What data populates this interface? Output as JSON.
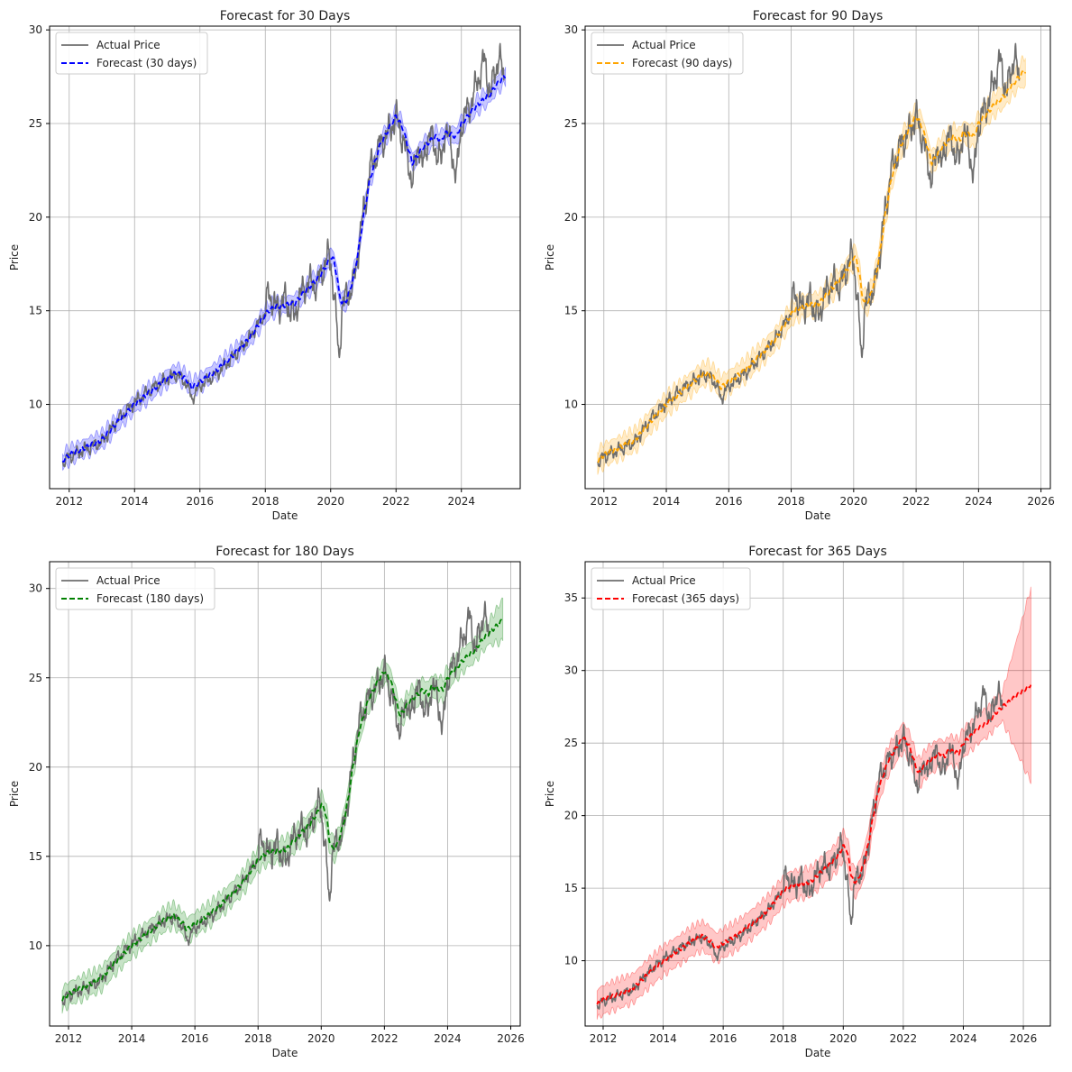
{
  "chart_data": [
    {
      "type": "line",
      "title": "Forecast for 30 Days",
      "xlabel": "Date",
      "ylabel": "Price",
      "xlim": [
        2011.4,
        2025.8
      ],
      "ylim": [
        5.5,
        30.2
      ],
      "xticks": [
        2012,
        2014,
        2016,
        2018,
        2020,
        2022,
        2024
      ],
      "yticks": [
        10,
        15,
        20,
        25,
        30
      ],
      "grid": true,
      "legend_position": "top-left",
      "forecast_color": "#0000ff",
      "forecast_end": 2025.35,
      "series": [
        {
          "name": "Actual Price",
          "color": "#808080",
          "style": "solid"
        },
        {
          "name": "Forecast (30 days)",
          "color": "#0000ff",
          "style": "dashed"
        }
      ]
    },
    {
      "type": "line",
      "title": "Forecast for 90 Days",
      "xlabel": "Date",
      "ylabel": "Price",
      "xlim": [
        2011.4,
        2026.3
      ],
      "ylim": [
        5.5,
        30.2
      ],
      "xticks": [
        2012,
        2014,
        2016,
        2018,
        2020,
        2022,
        2024,
        2026
      ],
      "yticks": [
        10,
        15,
        20,
        25,
        30
      ],
      "grid": true,
      "legend_position": "top-left",
      "forecast_color": "#ffa500",
      "forecast_end": 2025.5,
      "series": [
        {
          "name": "Actual Price",
          "color": "#808080",
          "style": "solid"
        },
        {
          "name": "Forecast (90 days)",
          "color": "#ffa500",
          "style": "dashed"
        }
      ]
    },
    {
      "type": "line",
      "title": "Forecast for 180 Days",
      "xlabel": "Date",
      "ylabel": "Price",
      "xlim": [
        2011.4,
        2026.3
      ],
      "ylim": [
        5.5,
        31.5
      ],
      "xticks": [
        2012,
        2014,
        2016,
        2018,
        2020,
        2022,
        2024,
        2026
      ],
      "yticks": [
        10,
        15,
        20,
        25,
        30
      ],
      "grid": true,
      "legend_position": "top-left",
      "forecast_color": "#008000",
      "forecast_end": 2025.75,
      "series": [
        {
          "name": "Actual Price",
          "color": "#808080",
          "style": "solid"
        },
        {
          "name": "Forecast (180 days)",
          "color": "#008000",
          "style": "dashed"
        }
      ]
    },
    {
      "type": "line",
      "title": "Forecast for 365 Days",
      "xlabel": "Date",
      "ylabel": "Price",
      "xlim": [
        2011.4,
        2026.9
      ],
      "ylim": [
        5.5,
        37.5
      ],
      "xticks": [
        2012,
        2014,
        2016,
        2018,
        2020,
        2022,
        2024,
        2026
      ],
      "yticks": [
        10,
        15,
        20,
        25,
        30,
        35
      ],
      "grid": true,
      "legend_position": "top-left",
      "forecast_color": "#ff0000",
      "forecast_end": 2026.25,
      "series": [
        {
          "name": "Actual Price",
          "color": "#808080",
          "style": "solid"
        },
        {
          "name": "Forecast (365 days)",
          "color": "#ff0000",
          "style": "dashed"
        }
      ]
    }
  ],
  "actual_series": {
    "x": [
      2011.8,
      2012.0,
      2012.5,
      2013.0,
      2013.5,
      2014.0,
      2014.5,
      2015.0,
      2015.3,
      2015.6,
      2015.75,
      2016.0,
      2016.5,
      2017.0,
      2017.5,
      2018.0,
      2018.1,
      2018.3,
      2018.6,
      2018.9,
      2019.0,
      2019.3,
      2019.6,
      2019.9,
      2020.0,
      2020.1,
      2020.2,
      2020.25,
      2020.35,
      2020.5,
      2020.7,
      2020.85,
      2021.0,
      2021.2,
      2021.5,
      2021.8,
      2022.0,
      2022.2,
      2022.4,
      2022.5,
      2022.7,
      2022.8,
      2023.0,
      2023.2,
      2023.4,
      2023.5,
      2023.7,
      2023.85,
      2024.0,
      2024.3,
      2024.5,
      2024.7,
      2024.9,
      2025.0,
      2025.15,
      2025.3
    ],
    "y": [
      6.9,
      7.2,
      7.6,
      8.0,
      9.2,
      10.1,
      10.8,
      11.4,
      11.6,
      11.1,
      10.3,
      11.0,
      11.6,
      12.5,
      13.5,
      14.9,
      16.1,
      15.1,
      15.6,
      14.6,
      15.6,
      16.5,
      16.4,
      17.9,
      17.7,
      16.0,
      13.8,
      12.3,
      15.2,
      15.8,
      16.4,
      18.3,
      20.2,
      22.5,
      23.8,
      24.6,
      25.4,
      24.2,
      22.8,
      21.8,
      24.1,
      22.5,
      24.5,
      23.7,
      22.9,
      24.9,
      23.6,
      22.1,
      25.0,
      26.1,
      27.3,
      28.4,
      26.5,
      27.6,
      28.6,
      27.4
    ]
  },
  "forecast_series": {
    "x": [
      2011.8,
      2012.0,
      2012.5,
      2013.0,
      2013.5,
      2014.0,
      2014.5,
      2015.0,
      2015.3,
      2015.6,
      2015.75,
      2016.0,
      2016.5,
      2017.0,
      2017.5,
      2018.0,
      2018.1,
      2018.3,
      2018.6,
      2018.9,
      2019.0,
      2019.3,
      2019.6,
      2019.9,
      2020.0,
      2020.1,
      2020.2,
      2020.25,
      2020.35,
      2020.5,
      2020.7,
      2020.85,
      2021.0,
      2021.2,
      2021.5,
      2021.8,
      2022.0,
      2022.2,
      2022.4,
      2022.5,
      2022.7,
      2022.8,
      2023.0,
      2023.2,
      2023.4,
      2023.5,
      2023.7,
      2023.85,
      2024.0,
      2024.3,
      2024.5,
      2024.7,
      2024.9,
      2025.0,
      2025.15,
      2025.3
    ],
    "y": [
      7.0,
      7.3,
      7.7,
      8.1,
      9.1,
      10.0,
      10.7,
      11.4,
      11.7,
      11.3,
      10.9,
      11.2,
      11.8,
      12.6,
      13.5,
      14.8,
      15.0,
      15.2,
      15.3,
      15.4,
      15.6,
      16.2,
      16.7,
      17.5,
      17.9,
      17.7,
      16.8,
      16.0,
      15.4,
      15.6,
      16.8,
      18.2,
      20.0,
      22.0,
      23.8,
      24.8,
      25.4,
      24.8,
      23.5,
      22.9,
      23.4,
      23.7,
      24.0,
      24.3,
      24.1,
      24.5,
      24.4,
      24.3,
      25.0,
      25.6,
      26.0,
      26.3,
      26.6,
      26.9,
      27.2,
      27.5
    ]
  }
}
